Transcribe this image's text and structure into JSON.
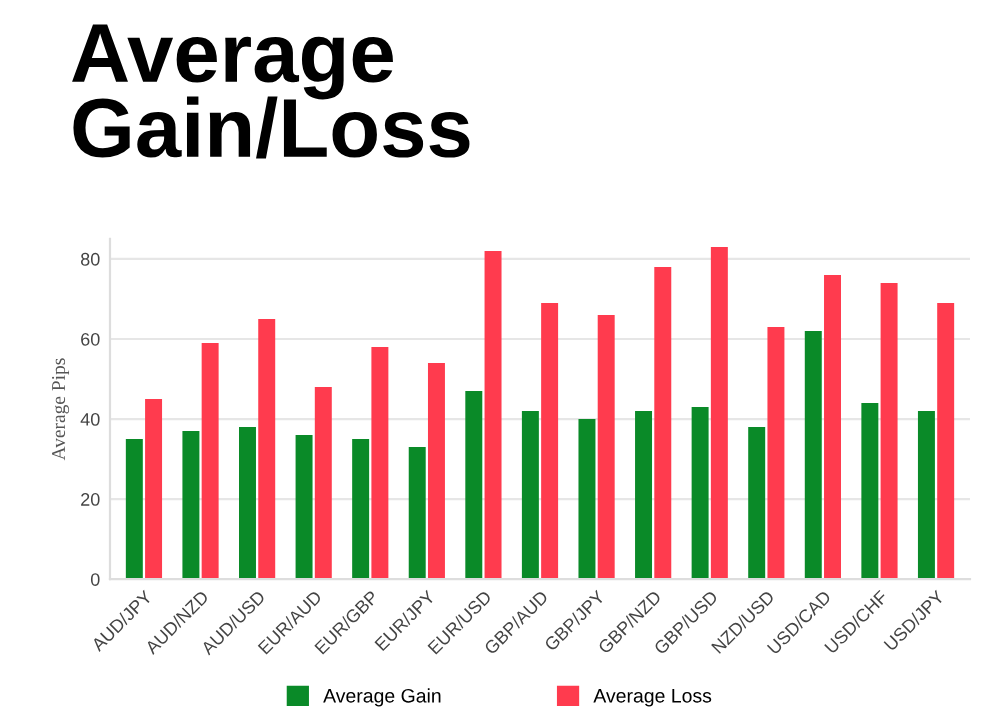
{
  "chart_data": {
    "type": "bar",
    "title": "Average\nGain/Loss",
    "ylabel": "Average Pips",
    "categories": [
      "AUD/JPY",
      "AUD/NZD",
      "AUD/USD",
      "EUR/AUD",
      "EUR/GBP",
      "EUR/JPY",
      "EUR/USD",
      "GBP/AUD",
      "GBP/JPY",
      "GBP/NZD",
      "GBP/USD",
      "NZD/USD",
      "USD/CAD",
      "USD/CHF",
      "USD/JPY"
    ],
    "series": [
      {
        "name": "Average Gain",
        "color": "#0a8a28",
        "values": [
          35,
          37,
          38,
          36,
          35,
          33,
          47,
          42,
          40,
          42,
          43,
          38,
          62,
          44,
          42
        ]
      },
      {
        "name": "Average Loss",
        "color": "#ff3b4e",
        "values": [
          45,
          59,
          65,
          48,
          58,
          54,
          82,
          69,
          66,
          78,
          83,
          63,
          76,
          74,
          69
        ]
      }
    ],
    "ylim": [
      0,
      85
    ],
    "yticks": [
      0,
      20,
      40,
      60,
      80
    ],
    "grid": "y",
    "legend": "bottom"
  }
}
